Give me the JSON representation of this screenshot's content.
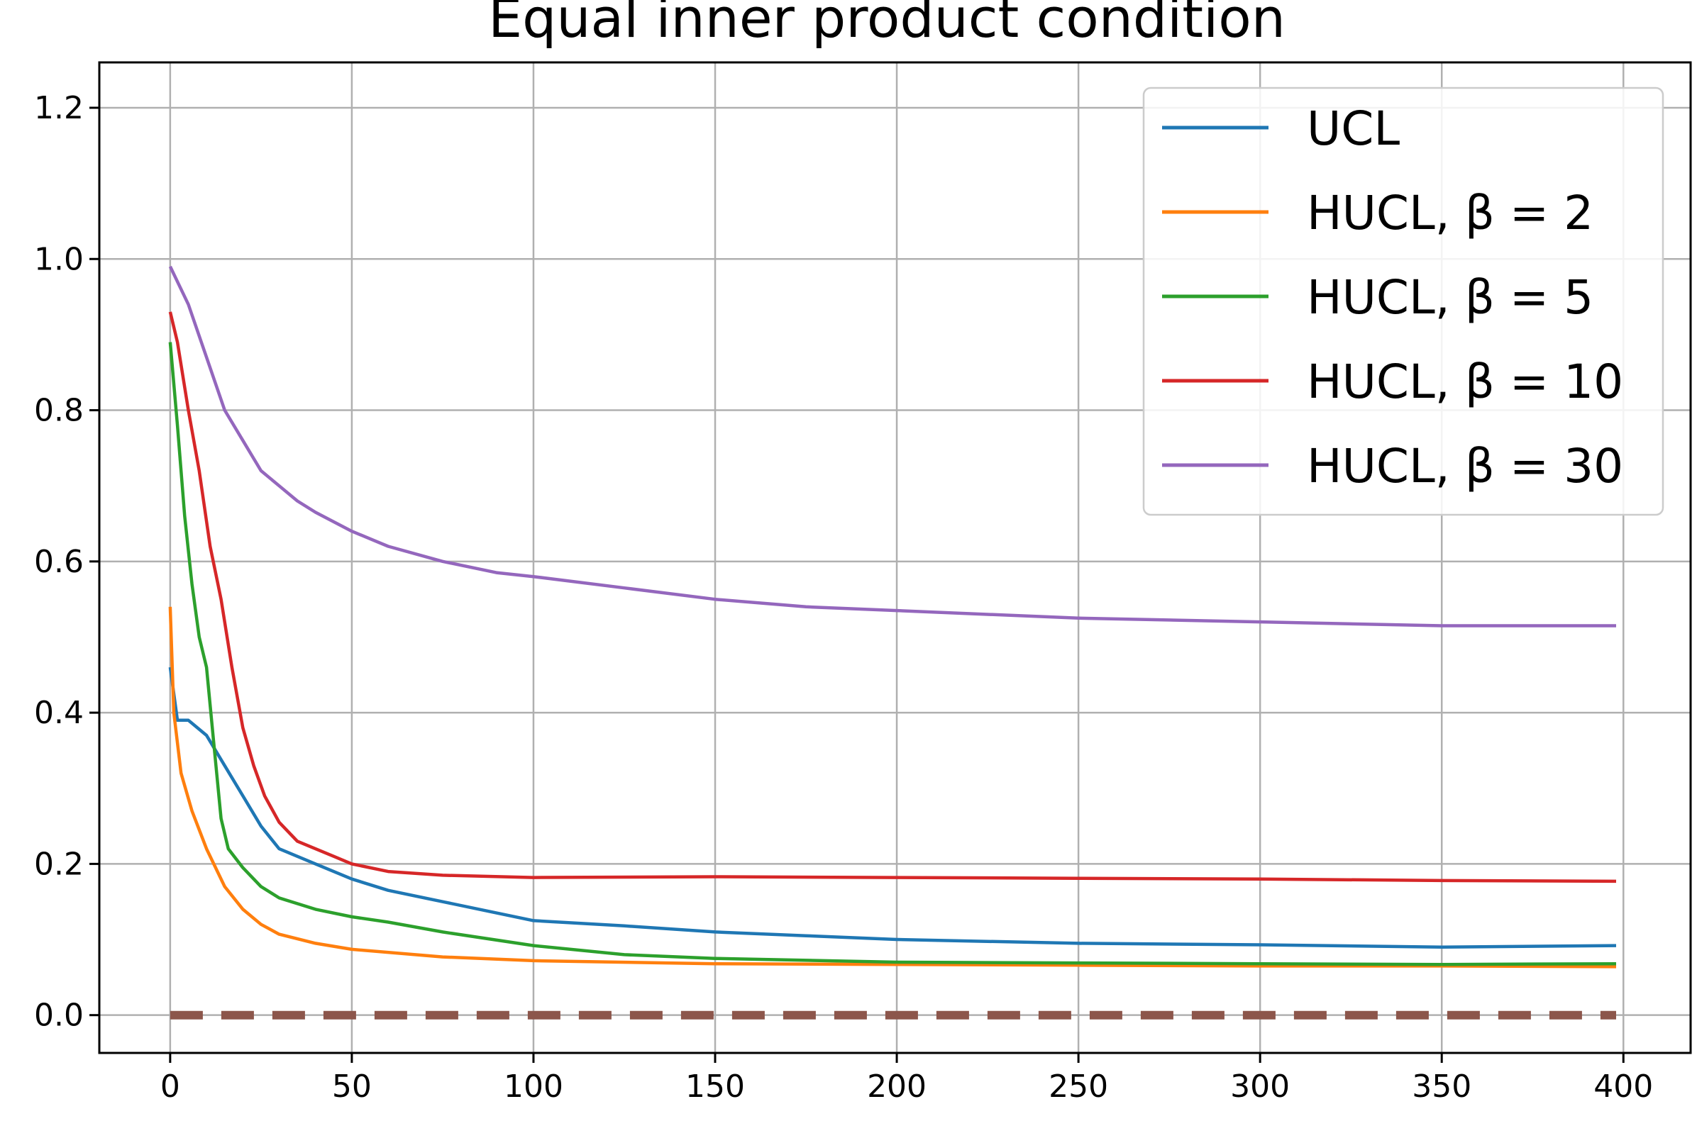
{
  "chart_data": {
    "type": "line",
    "title": "Equal inner product condition",
    "xlabel": "",
    "ylabel": "",
    "xlim": [
      -19.5,
      418.5
    ],
    "ylim": [
      -0.05,
      1.26
    ],
    "xticks": [
      0,
      50,
      100,
      150,
      200,
      250,
      300,
      350,
      400
    ],
    "xtick_labels": [
      "0",
      "50",
      "100",
      "150",
      "200",
      "250",
      "300",
      "350",
      "400"
    ],
    "yticks": [
      0.0,
      0.2,
      0.4,
      0.6,
      0.8,
      1.0,
      1.2
    ],
    "ytick_labels": [
      "0.0",
      "0.2",
      "0.4",
      "0.6",
      "0.8",
      "1.0",
      "1.2"
    ],
    "grid": true,
    "legend": "top-right",
    "series": [
      {
        "name": "UCL",
        "color": "#1f77b4",
        "x": [
          0,
          2,
          5,
          10,
          15,
          20,
          25,
          30,
          40,
          50,
          60,
          75,
          100,
          125,
          150,
          175,
          200,
          250,
          300,
          350,
          398
        ],
        "y": [
          0.46,
          0.39,
          0.39,
          0.37,
          0.33,
          0.29,
          0.25,
          0.22,
          0.2,
          0.18,
          0.165,
          0.15,
          0.125,
          0.118,
          0.11,
          0.105,
          0.1,
          0.095,
          0.093,
          0.09,
          0.092
        ]
      },
      {
        "name": "HUCL, β = 2",
        "color": "#ff7f0e",
        "x": [
          0,
          1,
          3,
          6,
          10,
          15,
          20,
          25,
          30,
          40,
          50,
          75,
          100,
          150,
          200,
          250,
          300,
          350,
          398
        ],
        "y": [
          0.54,
          0.4,
          0.32,
          0.27,
          0.22,
          0.17,
          0.14,
          0.12,
          0.107,
          0.095,
          0.087,
          0.077,
          0.072,
          0.068,
          0.067,
          0.066,
          0.065,
          0.065,
          0.064
        ]
      },
      {
        "name": "HUCL, β = 5",
        "color": "#2ca02c",
        "x": [
          0,
          2,
          4,
          6,
          8,
          10,
          12,
          14,
          16,
          20,
          25,
          30,
          40,
          50,
          60,
          75,
          100,
          125,
          150,
          200,
          250,
          300,
          350,
          398
        ],
        "y": [
          0.89,
          0.78,
          0.66,
          0.57,
          0.5,
          0.46,
          0.36,
          0.26,
          0.22,
          0.195,
          0.17,
          0.155,
          0.14,
          0.13,
          0.123,
          0.11,
          0.092,
          0.08,
          0.075,
          0.07,
          0.069,
          0.068,
          0.067,
          0.068
        ]
      },
      {
        "name": "HUCL, β = 10",
        "color": "#d62728",
        "x": [
          0,
          2,
          5,
          8,
          11,
          14,
          17,
          20,
          23,
          26,
          30,
          35,
          40,
          45,
          50,
          60,
          75,
          100,
          150,
          200,
          250,
          300,
          350,
          398
        ],
        "y": [
          0.93,
          0.89,
          0.8,
          0.72,
          0.62,
          0.55,
          0.46,
          0.38,
          0.33,
          0.29,
          0.255,
          0.23,
          0.22,
          0.21,
          0.2,
          0.19,
          0.185,
          0.182,
          0.183,
          0.182,
          0.181,
          0.18,
          0.178,
          0.177
        ]
      },
      {
        "name": "HUCL, β = 30",
        "color": "#9467bd",
        "x": [
          0,
          5,
          10,
          15,
          20,
          25,
          30,
          35,
          40,
          50,
          60,
          75,
          90,
          100,
          125,
          150,
          175,
          200,
          250,
          300,
          350,
          398
        ],
        "y": [
          0.99,
          0.94,
          0.87,
          0.8,
          0.76,
          0.72,
          0.7,
          0.68,
          0.665,
          0.64,
          0.62,
          0.6,
          0.585,
          0.58,
          0.565,
          0.55,
          0.54,
          0.535,
          0.525,
          0.52,
          0.515,
          0.515
        ]
      },
      {
        "name": "",
        "color": "#8c564b",
        "dashed": true,
        "x": [
          0,
          398
        ],
        "y": [
          0.0,
          0.0
        ]
      }
    ]
  }
}
